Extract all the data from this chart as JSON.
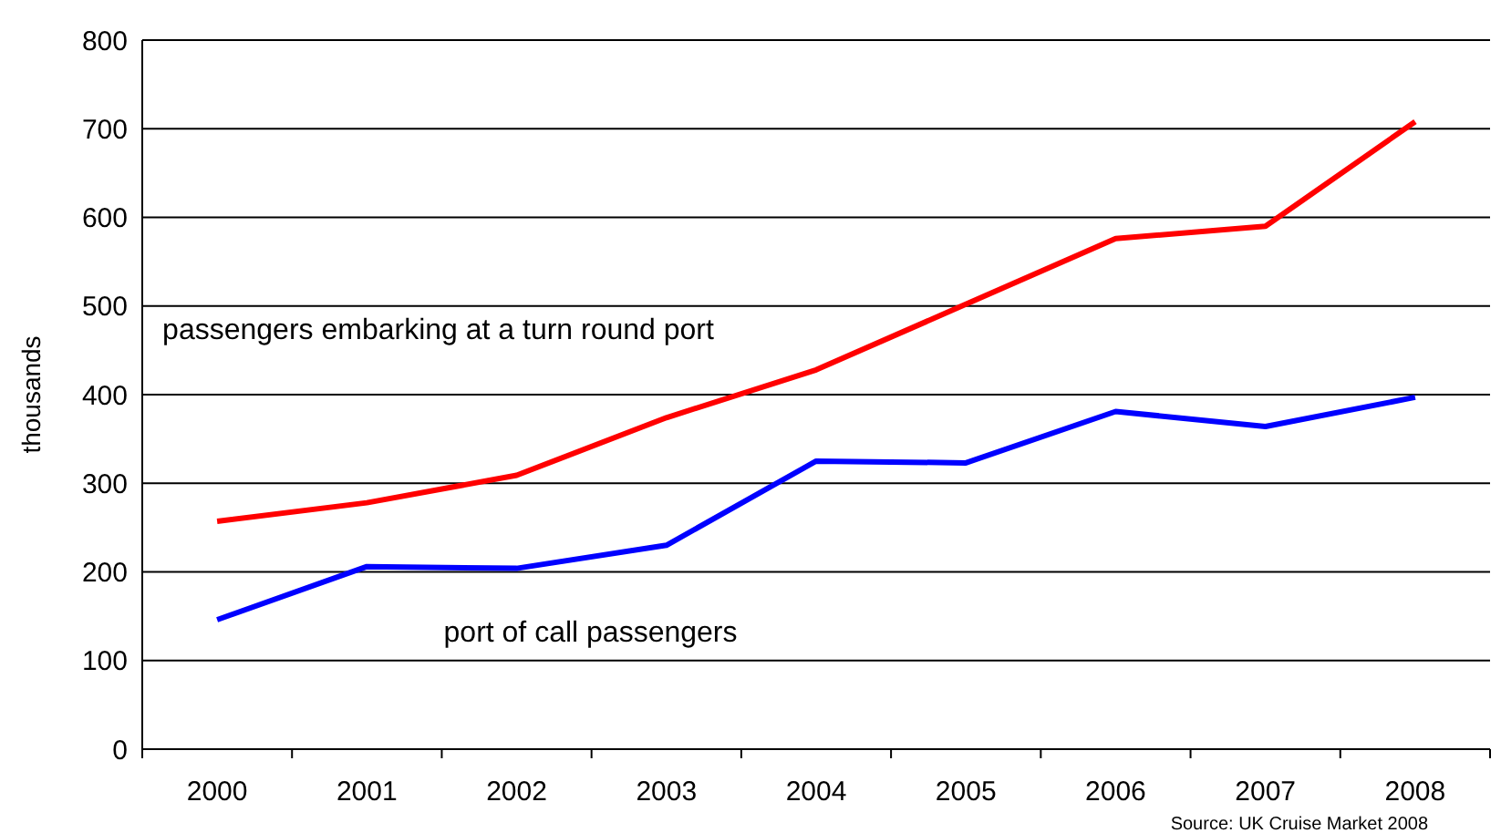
{
  "chart_data": {
    "type": "line",
    "ylabel": "thousands",
    "categories": [
      "2000",
      "2001",
      "2002",
      "2003",
      "2004",
      "2005",
      "2006",
      "2007",
      "2008"
    ],
    "series": [
      {
        "name": "passengers embarking at a turn round port",
        "color": "#ff0000",
        "values": [
          257,
          278,
          309,
          374,
          428,
          502,
          576,
          590,
          708
        ]
      },
      {
        "name": "port of call passengers",
        "color": "#0000ff",
        "values": [
          146,
          206,
          204,
          230,
          325,
          323,
          381,
          364,
          397
        ]
      }
    ],
    "ylim": [
      0,
      800
    ],
    "yticks": [
      0,
      100,
      200,
      300,
      400,
      500,
      600,
      700,
      800
    ],
    "grid": "y",
    "legend": false,
    "marker": "none",
    "line_style": "solid",
    "annotations": [
      "Source: UK Cruise Market 2008"
    ]
  }
}
